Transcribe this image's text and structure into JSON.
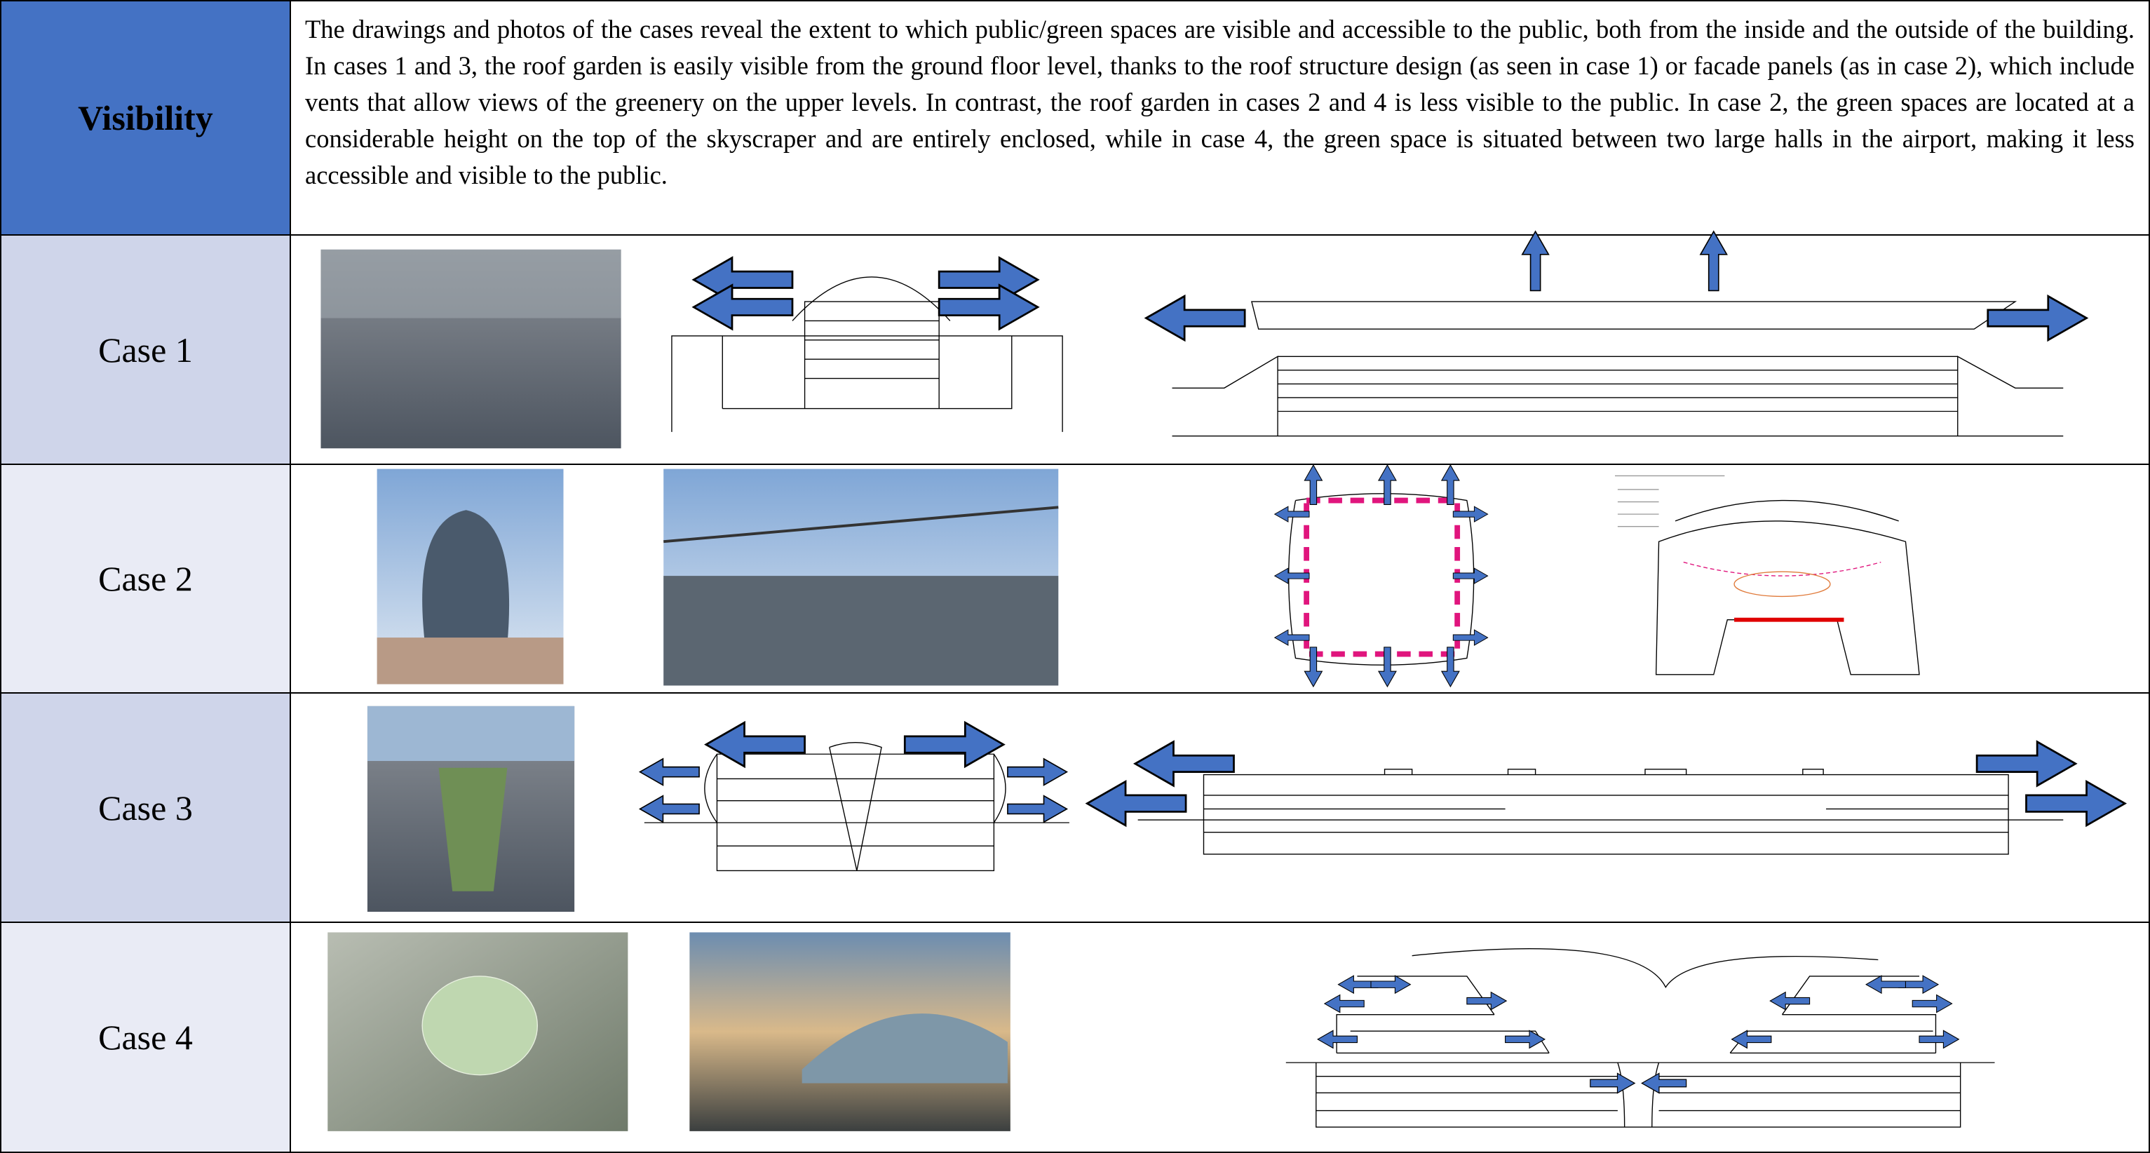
{
  "header": {
    "title": "Visibility",
    "text": "The drawings and photos of the cases reveal the extent to which public/green spaces are visible and accessible to the public, both from the inside and the outside of the building. In cases 1 and 3, the roof garden is easily visible from the ground floor level, thanks to the roof structure design (as seen in case 1) or facade panels (as in case 2), which include vents that allow views of the greenery on the upper levels. In contrast, the roof garden in cases 2 and 4 is less visible to the public. In case 2, the green spaces are located at a considerable height on the top of the skyscraper and are entirely enclosed, while in case 4, the green space is situated between two large halls in the airport, making it less accessible and visible to the public."
  },
  "rows": [
    {
      "label": "Case 1"
    },
    {
      "label": "Case 2"
    },
    {
      "label": "Case 3"
    },
    {
      "label": "Case 4"
    }
  ]
}
